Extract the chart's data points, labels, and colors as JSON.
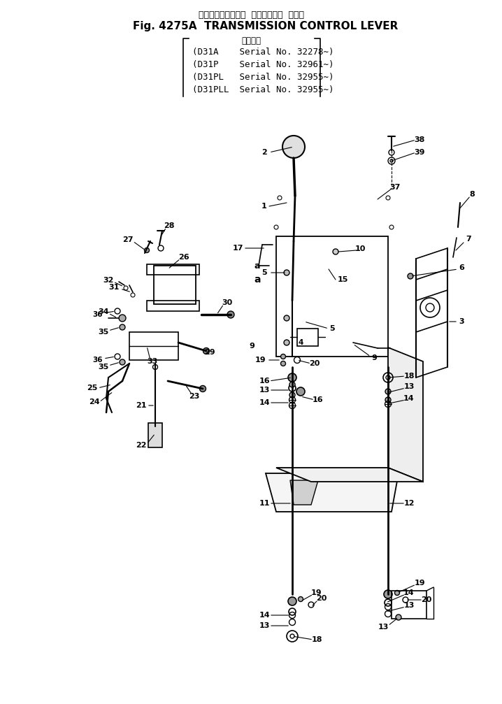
{
  "title_jp": "トランスミッション  コントロール  レバー",
  "title_en": "Fig. 4275A  TRANSMISSION CONTROL LEVER",
  "subtitle_jp": "適用号機",
  "models": [
    "(D31A    Serial No. 32278∼)",
    "(D31P    Serial No. 32961∼)",
    "(D31PL   Serial No. 32955∼)",
    "(D31PLL  Serial No. 32955∼)"
  ],
  "bg_color": "#ffffff",
  "line_color": "#000000",
  "text_color": "#000000",
  "fig_width": 7.18,
  "fig_height": 10.07,
  "dpi": 100
}
